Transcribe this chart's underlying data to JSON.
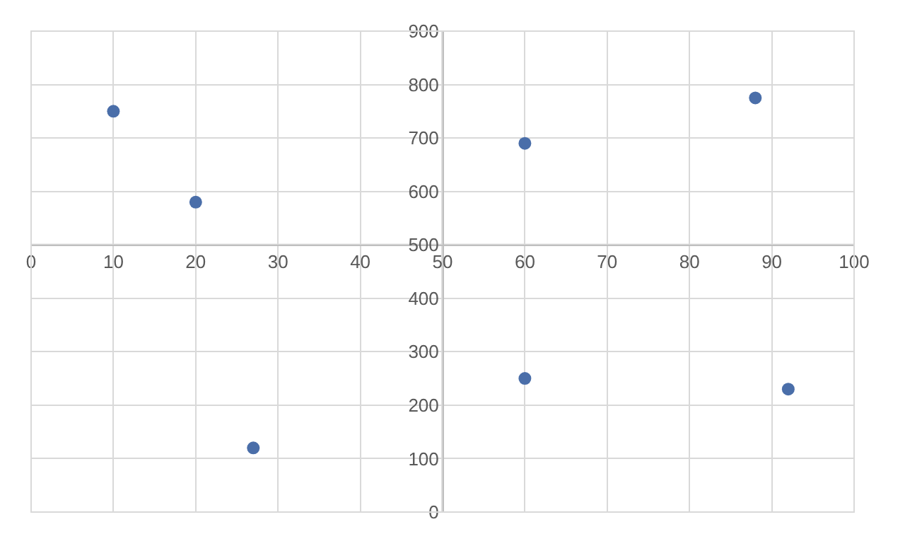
{
  "chart_data": {
    "type": "scatter",
    "x": [
      10,
      20,
      27,
      60,
      60,
      88,
      92
    ],
    "values": [
      750,
      580,
      120,
      690,
      250,
      775,
      230
    ],
    "color": "#4a6ea9",
    "marker": "circle",
    "xlim": [
      0,
      100
    ],
    "xticks": [
      0,
      10,
      20,
      30,
      40,
      50,
      60,
      70,
      80,
      90,
      100
    ],
    "ylim": [
      0,
      900
    ],
    "yticks": [
      0,
      100,
      200,
      300,
      400,
      500,
      600,
      700,
      800,
      900
    ],
    "ref_lines": [
      {
        "axis": "x",
        "value": 50
      },
      {
        "axis": "y",
        "value": 500
      }
    ],
    "grid": true
  }
}
